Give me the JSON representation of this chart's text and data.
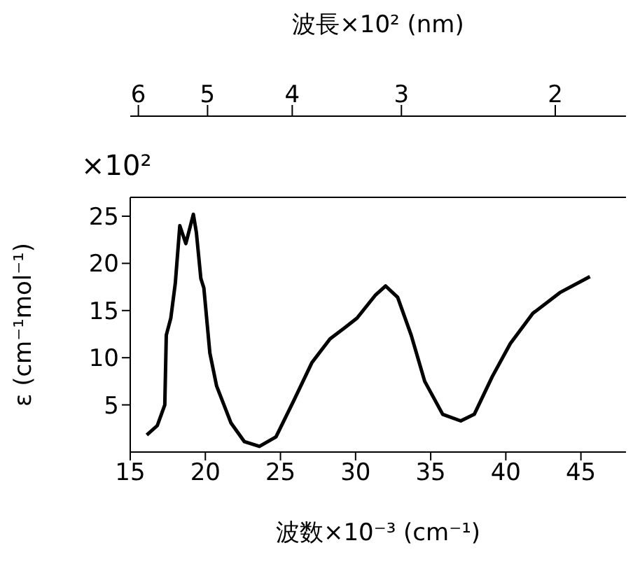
{
  "chart_data": {
    "type": "line",
    "x2label": "波長×10² (nm)",
    "xlabel": "波数×10⁻³ (cm⁻¹)",
    "ylabel": "ε (cm⁻¹mol⁻¹)",
    "annotations": [
      "×10²"
    ],
    "xlim": [
      15,
      48
    ],
    "xticks": [
      15,
      20,
      25,
      30,
      35,
      40,
      45
    ],
    "x2lim": [
      6.13,
      1.66
    ],
    "x2ticks": [
      6,
      5,
      4,
      3,
      2
    ],
    "log": "x2",
    "ylim": [
      0,
      27
    ],
    "yticks": [
      5,
      10,
      15,
      20,
      25
    ],
    "marker": "none",
    "x": [
      16.1,
      16.8,
      17.3,
      17.4,
      17.7,
      18.0,
      18.3,
      18.7,
      19.2,
      19.4,
      19.7,
      19.9,
      20.3,
      20.75,
      21.7,
      22.6,
      23.6,
      24.7,
      25.9,
      27.1,
      28.3,
      29.3,
      30.1,
      31.3,
      32.0,
      32.8,
      33.7,
      34.6,
      35.8,
      37.0,
      37.9,
      39.1,
      40.3,
      41.8,
      43.6,
      45.6
    ],
    "series": [
      {
        "color": "#000000",
        "values": [
          1.8,
          2.8,
          5.0,
          12.4,
          14.2,
          17.9,
          24.0,
          22.1,
          25.2,
          23.3,
          18.4,
          17.4,
          10.5,
          7.0,
          3.1,
          1.1,
          0.6,
          1.6,
          5.5,
          9.5,
          12.0,
          13.2,
          14.2,
          16.6,
          17.6,
          16.4,
          12.4,
          7.5,
          4.0,
          3.3,
          4.0,
          8.0,
          11.5,
          14.7,
          16.9,
          18.6
        ]
      }
    ]
  }
}
